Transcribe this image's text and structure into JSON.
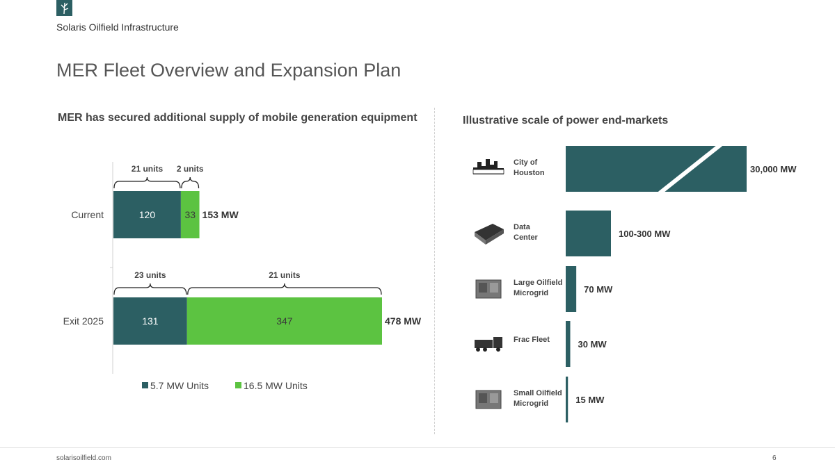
{
  "header": {
    "company": "Solaris Oilfield Infrastructure",
    "title": "MER Fleet Overview and Expansion Plan"
  },
  "colors": {
    "dark": "#2c5f63",
    "green": "#5cc341"
  },
  "footer": {
    "site": "solarisoilfield.com",
    "page": "6"
  },
  "left_panel": {
    "heading": "MER has secured additional supply of mobile generation equipment"
  },
  "right_panel": {
    "heading": "Illustrative scale of power end-markets"
  },
  "chart_data": [
    {
      "type": "bar",
      "orientation": "horizontal",
      "stacked": true,
      "categories": [
        "Current",
        "Exit 2025"
      ],
      "series": [
        {
          "name": "5.7 MW Units",
          "values": [
            120,
            131
          ],
          "units": [
            "21 units",
            "23 units"
          ]
        },
        {
          "name": "16.5 MW Units",
          "values": [
            33,
            347
          ],
          "units": [
            "2 units",
            "21 units"
          ]
        }
      ],
      "totals": [
        "153 MW",
        "478 MW"
      ],
      "legend": "bottom"
    },
    {
      "type": "bar",
      "orientation": "horizontal",
      "categories": [
        "City of Houston",
        "Data Center",
        "Large Oilfield Microgrid",
        "Frac Fleet",
        "Small Oilfield Microgrid"
      ],
      "values": [
        30000,
        300,
        70,
        30,
        15
      ],
      "labels": [
        "30,000 MW",
        "100-300 MW",
        "70 MW",
        "30 MW",
        "15 MW"
      ],
      "icons": [
        "houston-skyline-icon",
        "server-rack-icon",
        "generator-icon",
        "frac-truck-icon",
        "generator-icon"
      ],
      "axis_break": "on first bar"
    }
  ]
}
